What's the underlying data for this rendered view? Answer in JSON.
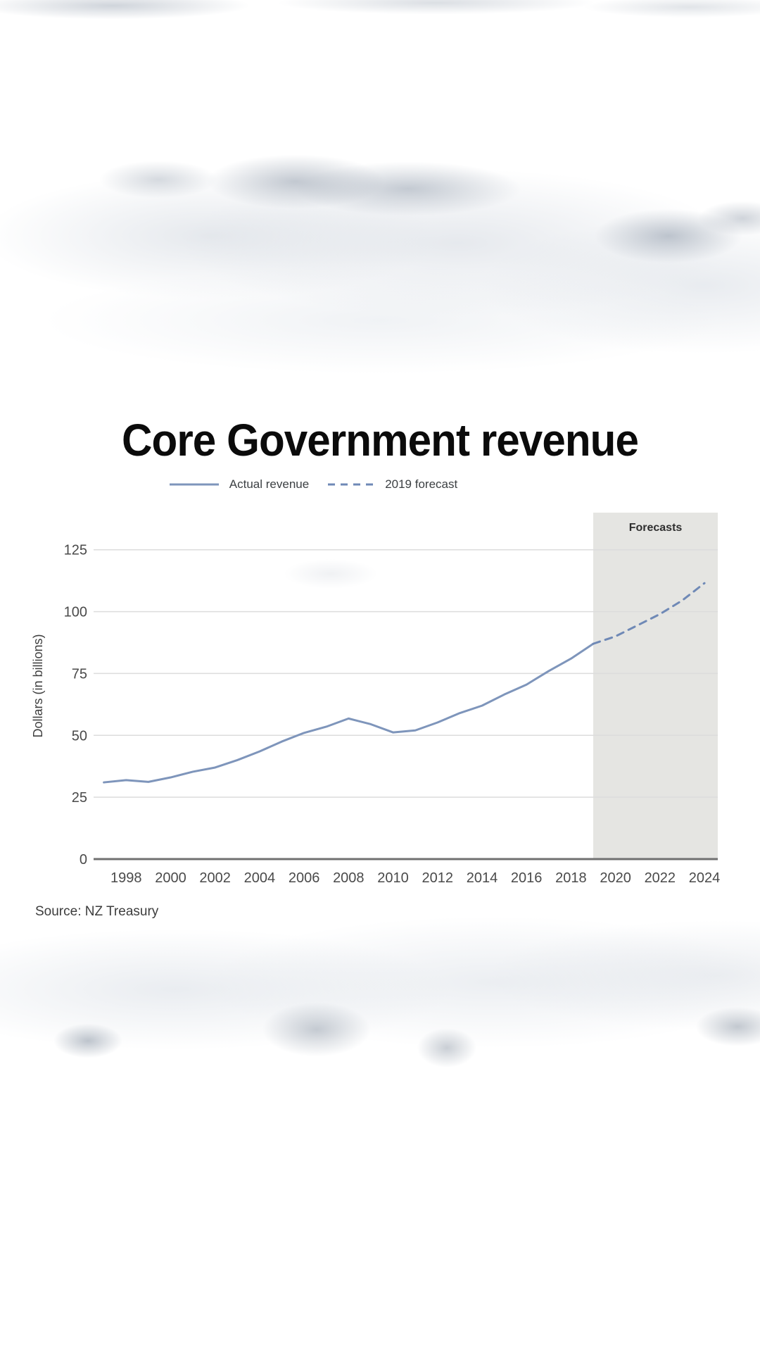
{
  "chart_data": {
    "type": "line",
    "title": "Core Government revenue",
    "ylabel": "Dollars (in billions)",
    "source": "Source: NZ Treasury",
    "xlim": [
      1996.6,
      2024.6
    ],
    "ylim": [
      0,
      140
    ],
    "x_ticks": [
      1998,
      2000,
      2002,
      2004,
      2006,
      2008,
      2010,
      2012,
      2014,
      2016,
      2018,
      2020,
      2022,
      2024
    ],
    "y_ticks": [
      0,
      25,
      50,
      75,
      100,
      125
    ],
    "grid": "horizontal-only",
    "legend_position": "top-center",
    "forecast_band": {
      "label": "Forecasts",
      "x_start": 2019,
      "x_end": 2024.6
    },
    "series": [
      {
        "name": "Actual revenue",
        "style": "solid",
        "x": [
          1997,
          1998,
          1999,
          2000,
          2001,
          2002,
          2003,
          2004,
          2005,
          2006,
          2007,
          2008,
          2009,
          2010,
          2011,
          2012,
          2013,
          2014,
          2015,
          2016,
          2017,
          2018,
          2019
        ],
        "values": [
          31,
          31.9,
          31.2,
          33,
          35.3,
          37,
          40,
          43.5,
          47.5,
          51,
          53.5,
          56.8,
          54.5,
          51.2,
          52,
          55.2,
          59,
          62,
          66.5,
          70.5,
          76,
          81,
          87
        ]
      },
      {
        "name": "2019 forecast",
        "style": "dashed",
        "x": [
          2019,
          2020,
          2021,
          2022,
          2023,
          2024
        ],
        "values": [
          87,
          90,
          94.5,
          99,
          104.5,
          111.5
        ]
      }
    ],
    "colors": {
      "actual_line": "#7e95bb",
      "forecast_line": "#6f89b6",
      "forecast_band": "#e5e5e2",
      "gridline": "#dcdcdc",
      "axis": "#707070",
      "tick_label": "#4a4a4a",
      "band_label": "#2f2f2f",
      "axis_title": "#3f3f3f"
    }
  }
}
